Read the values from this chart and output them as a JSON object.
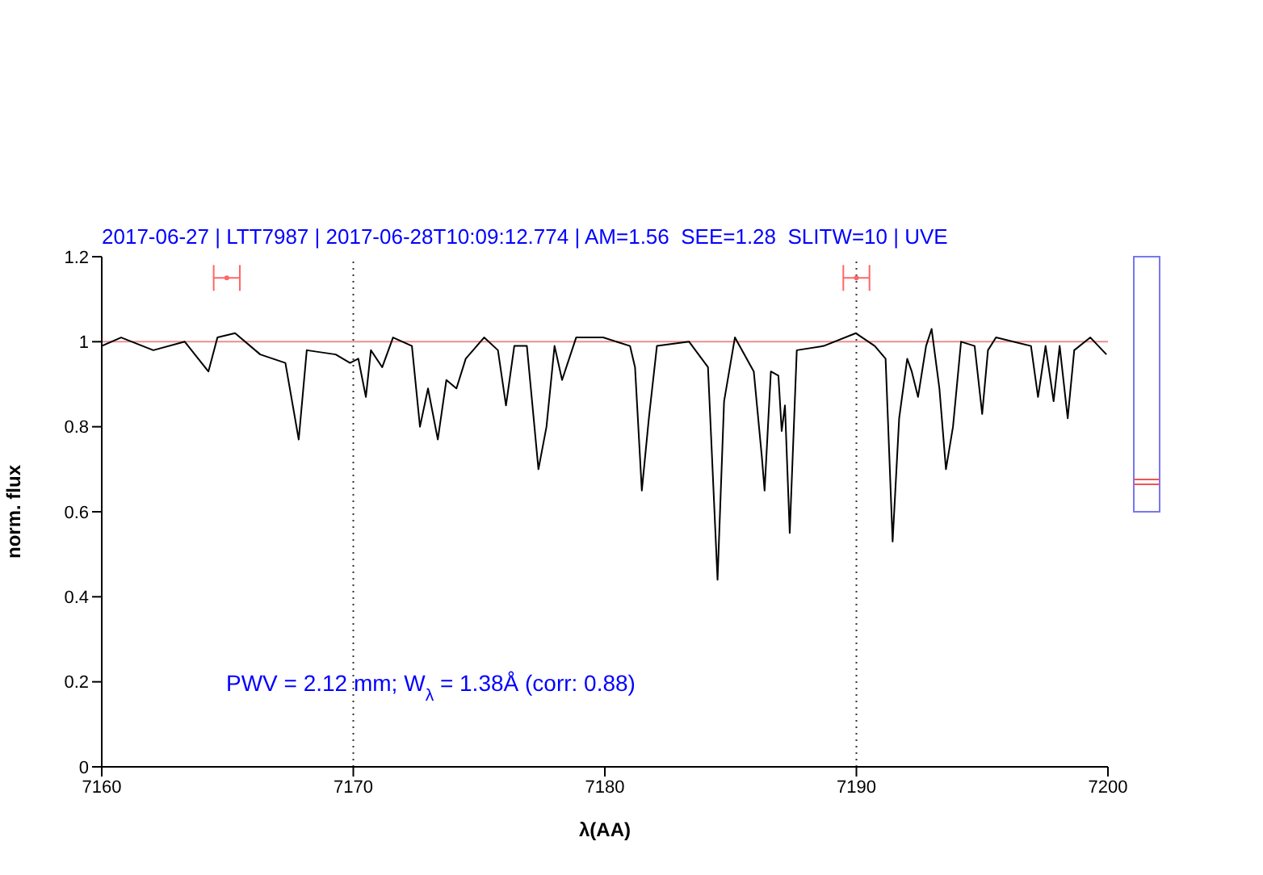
{
  "chart_data": {
    "type": "line",
    "title": "2017-06-27 | LTT7987 | 2017-06-28T10:09:12.774 | AM=1.56  SEE=1.28  SLITW=10 | UVE",
    "xlabel": "λ(AA)",
    "ylabel": "norm. flux",
    "annotations": [
      "PWV = 2.12 mm; W$_{λ}$ = 1.38Å (corr: 0.88)"
    ],
    "xlim": [
      7160,
      7200
    ],
    "xticks": [
      7160,
      7170,
      7180,
      7190,
      7200
    ],
    "ylim": [
      0,
      1.2
    ],
    "yticks": [
      0,
      0.2,
      0.4,
      0.6,
      0.8,
      1,
      1.2
    ],
    "marker": "none",
    "ref_lines": [
      {
        "axis": "y",
        "value": 1,
        "color": "#e89090",
        "line_style": "solid"
      },
      {
        "axis": "x",
        "value": 7170,
        "color": "#333333",
        "line_style": "dotted"
      },
      {
        "axis": "x",
        "value": 7190,
        "color": "#333333",
        "line_style": "dotted"
      }
    ],
    "series": [
      {
        "color": "#000000",
        "line_style": "solid",
        "x": [
          7160.0,
          7160.77,
          7162.05,
          7163.3,
          7164.24,
          7164.6,
          7165.3,
          7166.3,
          7167.3,
          7167.83,
          7168.15,
          7169.3,
          7169.87,
          7170.2,
          7170.5,
          7170.7,
          7171.15,
          7171.58,
          7172.33,
          7172.65,
          7172.97,
          7173.36,
          7173.7,
          7174.1,
          7174.47,
          7175.2,
          7175.75,
          7176.07,
          7176.4,
          7176.9,
          7177.36,
          7177.68,
          7178.0,
          7178.3,
          7178.86,
          7179.93,
          7181.0,
          7181.2,
          7181.47,
          7181.75,
          7182.07,
          7183.35,
          7184.1,
          7184.48,
          7184.74,
          7185.17,
          7185.92,
          7186.24,
          7186.35,
          7186.6,
          7186.9,
          7187.03,
          7187.16,
          7187.35,
          7187.63,
          7188.7,
          7189.98,
          7190.73,
          7191.16,
          7191.44,
          7191.7,
          7192.02,
          7192.2,
          7192.45,
          7192.77,
          7192.99,
          7193.3,
          7193.56,
          7193.84,
          7194.16,
          7194.7,
          7195.0,
          7195.23,
          7195.55,
          7196.94,
          7197.22,
          7197.52,
          7197.84,
          7198.08,
          7198.4,
          7198.66,
          7199.3,
          7199.94
        ],
        "values": [
          0.99,
          1.01,
          0.98,
          1.0,
          0.93,
          1.01,
          1.02,
          0.97,
          0.95,
          0.77,
          0.98,
          0.97,
          0.95,
          0.96,
          0.87,
          0.98,
          0.94,
          1.01,
          0.99,
          0.8,
          0.89,
          0.77,
          0.91,
          0.89,
          0.96,
          1.01,
          0.98,
          0.85,
          0.99,
          0.99,
          0.7,
          0.8,
          0.99,
          0.91,
          1.01,
          1.01,
          0.99,
          0.94,
          0.65,
          0.82,
          0.99,
          1.0,
          0.94,
          0.44,
          0.86,
          1.01,
          0.93,
          0.73,
          0.65,
          0.93,
          0.92,
          0.79,
          0.85,
          0.55,
          0.98,
          0.99,
          1.02,
          0.99,
          0.96,
          0.53,
          0.82,
          0.96,
          0.93,
          0.87,
          0.99,
          1.03,
          0.89,
          0.7,
          0.8,
          1.0,
          0.99,
          0.83,
          0.98,
          1.01,
          0.99,
          0.87,
          0.99,
          0.86,
          0.99,
          0.82,
          0.98,
          1.01,
          0.97
        ]
      },
      {
        "type": "scatter",
        "color": "#ff6666",
        "marker": "circle",
        "x": [
          7164.97,
          7190.0
        ],
        "values": [
          1.15,
          1.15
        ],
        "xerrors": [
          0.52,
          0.52
        ]
      }
    ]
  }
}
